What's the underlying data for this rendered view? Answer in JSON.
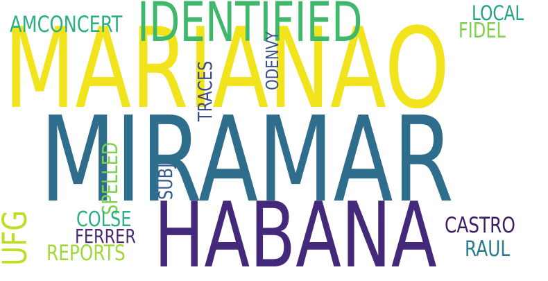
{
  "words": {
    "marianao": {
      "text": "MARIANAO",
      "color": "#f2e41c"
    },
    "miramar": {
      "text": "MIRAMAR",
      "color": "#2f6d8c"
    },
    "habana": {
      "text": "HABANA",
      "color": "#44297a"
    },
    "identified": {
      "text": "IDENTIFIED",
      "color": "#3eb86a"
    },
    "amconcert": {
      "text": "AMCONCERT",
      "color": "#2aae84"
    },
    "local": {
      "text": "LOCAL",
      "color": "#22a184"
    },
    "fidel": {
      "text": "FIDEL",
      "color": "#7fcf4c"
    },
    "odenvy": {
      "text": "ODENVY",
      "color": "#3b528b"
    },
    "traces": {
      "text": "TRACES",
      "color": "#3e4b8a"
    },
    "ufg": {
      "text": "UFG",
      "color": "#bcdf26"
    },
    "spelled": {
      "text": "SPELLED",
      "color": "#79d152"
    },
    "subj": {
      "text": "SUBJ",
      "color": "#335d8c"
    },
    "colse": {
      "text": "COLSE",
      "color": "#2aae84"
    },
    "ferrer": {
      "text": "FERRER",
      "color": "#4c2775"
    },
    "reports": {
      "text": "REPORTS",
      "color": "#a0d83a"
    },
    "castro": {
      "text": "CASTRO",
      "color": "#3e1d64"
    },
    "raul": {
      "text": "RAUL",
      "color": "#2a7a8e"
    }
  }
}
